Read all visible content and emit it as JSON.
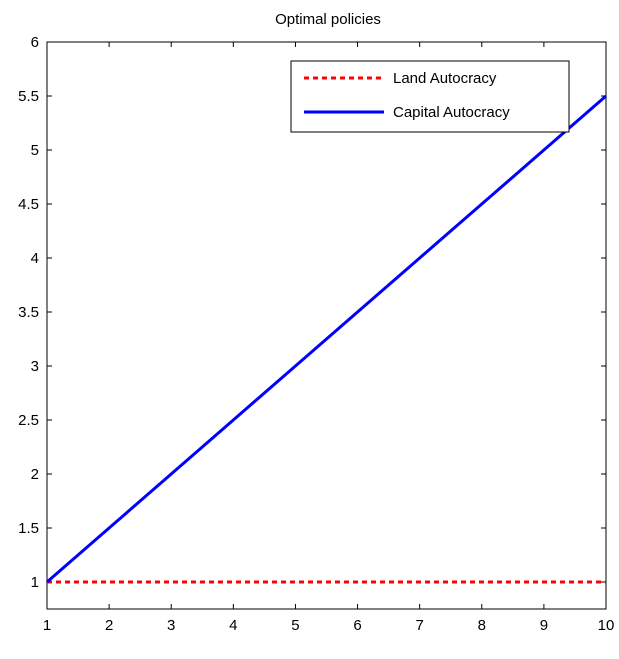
{
  "chart_data": {
    "type": "line",
    "title": "Optimal policies",
    "xlabel": "",
    "ylabel": "",
    "xlim": [
      1,
      10
    ],
    "ylim": [
      0.75,
      6
    ],
    "x_ticks": [
      1,
      2,
      3,
      4,
      5,
      6,
      7,
      8,
      9,
      10
    ],
    "y_ticks": [
      1,
      1.5,
      2,
      2.5,
      3,
      3.5,
      4,
      4.5,
      5,
      5.5,
      6
    ],
    "x_tick_labels": [
      "1",
      "2",
      "3",
      "4",
      "5",
      "6",
      "7",
      "8",
      "9",
      "10"
    ],
    "y_tick_labels": [
      "1",
      "1.5",
      "2",
      "2.5",
      "3",
      "3.5",
      "4",
      "4.5",
      "5",
      "5.5",
      "6"
    ],
    "grid": false,
    "legend_position": "top-right",
    "series": [
      {
        "name": "Land Autocracy",
        "color": "#ff0000",
        "style": "dotted",
        "x": [
          1,
          2,
          3,
          4,
          5,
          6,
          7,
          8,
          9,
          10
        ],
        "y": [
          1,
          1,
          1,
          1,
          1,
          1,
          1,
          1,
          1,
          1
        ]
      },
      {
        "name": "Capital Autocracy",
        "color": "#0000ff",
        "style": "solid",
        "x": [
          1,
          2,
          3,
          4,
          5,
          6,
          7,
          8,
          9,
          10
        ],
        "y": [
          1,
          1.5,
          2,
          2.5,
          3,
          3.5,
          4,
          4.5,
          5,
          5.5
        ]
      }
    ]
  }
}
